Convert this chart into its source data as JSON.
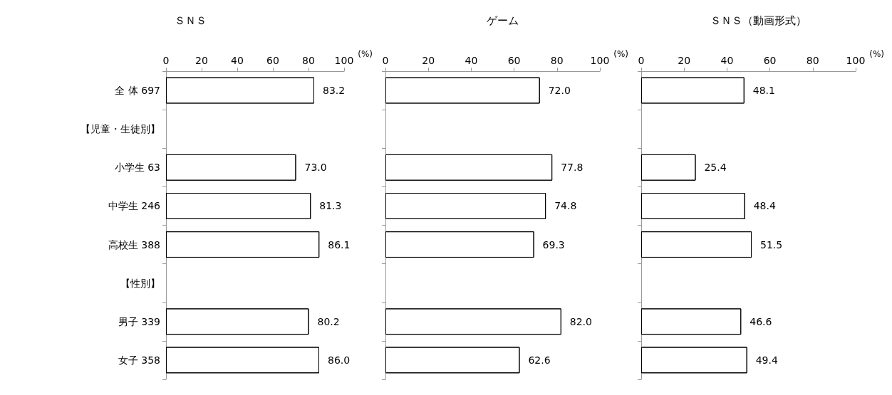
{
  "chart_data": [
    {
      "type": "bar",
      "orientation": "horizontal",
      "title": "ＳＮＳ",
      "xlabel": "(%)",
      "categories": [
        "全 体 697",
        "【児童・生徒別】",
        "小学生 63",
        "中学生 246",
        "高校生 388",
        "【性別】",
        "男子 339",
        "女子 358"
      ],
      "values": [
        83.2,
        null,
        73.0,
        81.3,
        86.1,
        null,
        80.2,
        86.0
      ],
      "value_labels": [
        "83.2",
        null,
        "73.0",
        "81.3",
        "86.1",
        null,
        "80.2",
        "86.0"
      ],
      "color": "#ffffff",
      "xlim": [
        0,
        100
      ],
      "xticks": [
        0,
        20,
        40,
        60,
        80,
        100
      ],
      "grid": false
    },
    {
      "type": "bar",
      "orientation": "horizontal",
      "title": "ゲーム",
      "xlabel": "(%)",
      "categories": [
        null,
        null,
        null,
        null,
        null,
        null,
        null,
        null
      ],
      "values": [
        72.0,
        null,
        77.8,
        74.8,
        69.3,
        null,
        82.0,
        62.6
      ],
      "value_labels": [
        "72.0",
        null,
        "77.8",
        "74.8",
        "69.3",
        null,
        "82.0",
        "62.6"
      ],
      "color": "#ffffff",
      "xlim": [
        0,
        100
      ],
      "xticks": [
        0,
        20,
        40,
        60,
        80,
        100
      ],
      "grid": false,
      "tick_labels": "x"
    },
    {
      "type": "bar",
      "orientation": "horizontal",
      "title": "ＳＮＳ（動画形式）",
      "xlabel": "(%)",
      "categories": [
        null,
        null,
        null,
        null,
        null,
        null,
        null,
        null
      ],
      "values": [
        48.1,
        null,
        25.4,
        48.4,
        51.5,
        null,
        46.6,
        49.4
      ],
      "value_labels": [
        "48.1",
        null,
        "25.4",
        "48.4",
        "51.5",
        null,
        "46.6",
        "49.4"
      ],
      "color": "#ffffff",
      "xlim": [
        0,
        100
      ],
      "xticks": [
        0,
        20,
        40,
        60,
        80,
        100
      ],
      "grid": false,
      "tick_labels": "x"
    }
  ]
}
